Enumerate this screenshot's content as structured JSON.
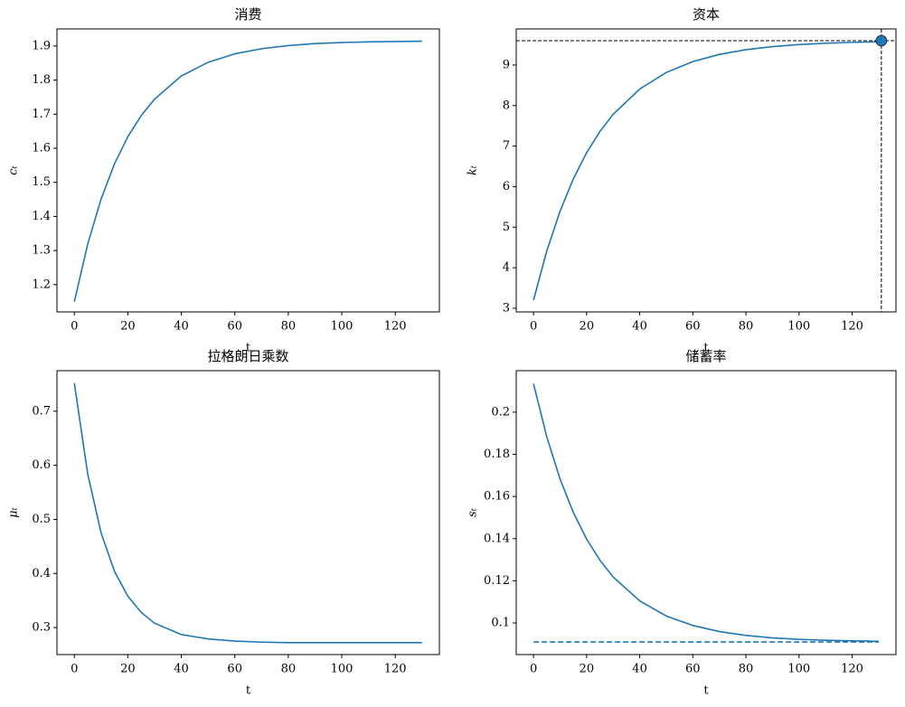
{
  "chart_data": [
    {
      "type": "line",
      "title": "消费",
      "xlabel": "t",
      "ylabel": "cₜ",
      "x": [
        0,
        5,
        10,
        15,
        20,
        25,
        30,
        40,
        50,
        60,
        70,
        80,
        90,
        100,
        110,
        120,
        130
      ],
      "series": [
        {
          "color": "#1f77b4",
          "values": [
            1.15,
            1.319,
            1.451,
            1.554,
            1.634,
            1.696,
            1.744,
            1.812,
            1.852,
            1.877,
            1.892,
            1.901,
            1.907,
            1.91,
            1.912,
            1.913,
            1.914
          ]
        }
      ],
      "xlim": [
        -6.5,
        136.5
      ],
      "xticks": [
        0,
        20,
        40,
        60,
        80,
        100,
        120
      ],
      "ylim": [
        1.12,
        1.95
      ],
      "yticks": [
        1.2,
        1.3,
        1.4,
        1.5,
        1.6,
        1.7,
        1.8,
        1.9
      ]
    },
    {
      "type": "line",
      "title": "资本",
      "xlabel": "t",
      "ylabel": "kₜ",
      "x": [
        0,
        5,
        10,
        15,
        20,
        25,
        30,
        40,
        50,
        60,
        70,
        80,
        90,
        100,
        110,
        120,
        130
      ],
      "series": [
        {
          "color": "#1f77b4",
          "values": [
            3.2,
            4.412,
            5.395,
            6.191,
            6.837,
            7.361,
            7.784,
            8.407,
            8.816,
            9.085,
            9.261,
            9.378,
            9.454,
            9.504,
            9.537,
            9.558,
            9.572
          ]
        }
      ],
      "steady_state": {
        "x": 131,
        "y": 9.6,
        "color": "#1f77b4"
      },
      "xlim": [
        -6.5,
        136.5
      ],
      "xticks": [
        0,
        20,
        40,
        60,
        80,
        100,
        120
      ],
      "ylim": [
        2.91,
        9.89
      ],
      "yticks": [
        3,
        4,
        5,
        6,
        7,
        8,
        9
      ]
    },
    {
      "type": "line",
      "title": "拉格朗日乘数",
      "xlabel": "t",
      "ylabel": "μₜ",
      "x": [
        0,
        5,
        10,
        15,
        20,
        25,
        30,
        40,
        50,
        60,
        70,
        80,
        90,
        100,
        110,
        120,
        130
      ],
      "series": [
        {
          "color": "#1f77b4",
          "values": [
            0.752,
            0.584,
            0.475,
            0.404,
            0.358,
            0.328,
            0.308,
            0.287,
            0.279,
            0.275,
            0.273,
            0.272,
            0.272,
            0.272,
            0.272,
            0.272,
            0.272
          ]
        }
      ],
      "xlim": [
        -6.5,
        136.5
      ],
      "xticks": [
        0,
        20,
        40,
        60,
        80,
        100,
        120
      ],
      "ylim": [
        0.25,
        0.775
      ],
      "yticks": [
        0.3,
        0.4,
        0.5,
        0.6,
        0.7
      ]
    },
    {
      "type": "line",
      "title": "储蓄率",
      "xlabel": "t",
      "ylabel": "sₜ",
      "x": [
        0,
        5,
        10,
        15,
        20,
        25,
        30,
        40,
        50,
        60,
        70,
        80,
        90,
        100,
        110,
        120,
        130
      ],
      "series": [
        {
          "color": "#1f77b4",
          "values": [
            0.2135,
            0.1883,
            0.1683,
            0.1524,
            0.1398,
            0.1298,
            0.1218,
            0.1105,
            0.1033,
            0.0988,
            0.0959,
            0.0941,
            0.0929,
            0.0922,
            0.0918,
            0.0915,
            0.0913
          ]
        },
        {
          "color": "#1f77b4",
          "dashed": true,
          "x": [
            0,
            130
          ],
          "values": [
            0.091,
            0.091
          ]
        }
      ],
      "xlim": [
        -6.5,
        136.5
      ],
      "xticks": [
        0,
        20,
        40,
        60,
        80,
        100,
        120
      ],
      "ylim": [
        0.085,
        0.2197
      ],
      "yticks": [
        0.1,
        0.12,
        0.14,
        0.16,
        0.18,
        0.2
      ]
    }
  ]
}
